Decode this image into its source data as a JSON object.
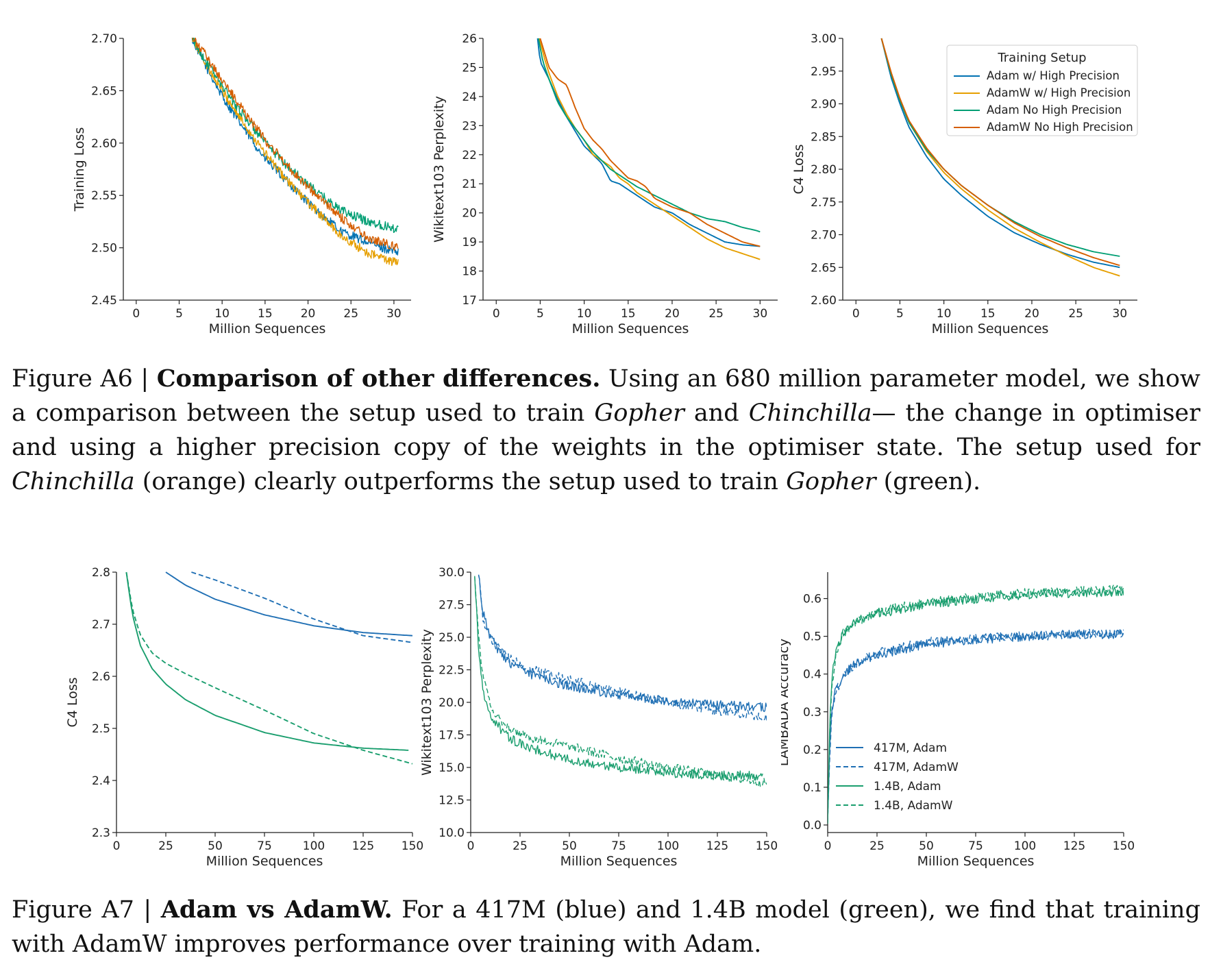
{
  "figureA6": {
    "label": "Figure A6 | ",
    "title": "Comparison of other differences.",
    "caption_parts": [
      " Using an 680 million parameter model, we show a comparison between the setup used to train ",
      "Gopher",
      " and ",
      "Chinchilla",
      "— the change in optimiser and using a higher precision copy of the weights in the optimiser state. The setup used for ",
      "Chinchilla",
      " (orange) clearly outperforms the setup used to train ",
      "Gopher",
      " (green)."
    ],
    "legend_title": "Training Setup"
  },
  "figureA7": {
    "label": "Figure A7 | ",
    "title": "Adam vs AdamW.",
    "caption": " For a 417M (blue) and 1.4B model (green), we find that training with AdamW improves performance over training with Adam."
  },
  "colors": {
    "blue": "#0072b2",
    "orange": "#e69f00",
    "green": "#009e73",
    "vermillion": "#d55e00",
    "adam417": "#1f6fb4",
    "adam14": "#1a9e6e"
  },
  "chart_data": [
    {
      "id": "a6-train",
      "type": "line",
      "title": "",
      "xlabel": "Million Sequences",
      "ylabel": "Training Loss",
      "xlim": [
        -1.5,
        32
      ],
      "ylim": [
        2.45,
        2.7
      ],
      "xticks": [
        0,
        5,
        10,
        15,
        20,
        25,
        30
      ],
      "yticks": [
        2.45,
        2.5,
        2.55,
        2.6,
        2.65,
        2.7
      ],
      "ytick_labels": [
        "2.45",
        "2.50",
        "2.55",
        "2.60",
        "2.65",
        "2.70"
      ],
      "noisy": true,
      "series": [
        {
          "name": "Adam w/ High Precision",
          "color": "#0072b2",
          "x": [
            6.5,
            8,
            10,
            12,
            15,
            18,
            21,
            24,
            27,
            30.5
          ],
          "y": [
            2.7,
            2.675,
            2.645,
            2.62,
            2.585,
            2.56,
            2.535,
            2.515,
            2.505,
            2.495
          ]
        },
        {
          "name": "AdamW w/ High Precision",
          "color": "#e69f00",
          "x": [
            6.5,
            8,
            10,
            12,
            15,
            18,
            21,
            24,
            27,
            30.5
          ],
          "y": [
            2.7,
            2.678,
            2.65,
            2.625,
            2.59,
            2.56,
            2.535,
            2.51,
            2.495,
            2.485
          ]
        },
        {
          "name": "Adam No High Precision",
          "color": "#009e73",
          "x": [
            6.5,
            8,
            10,
            12,
            15,
            18,
            21,
            24,
            27,
            30.5
          ],
          "y": [
            2.7,
            2.68,
            2.655,
            2.632,
            2.6,
            2.575,
            2.553,
            2.535,
            2.525,
            2.518
          ]
        },
        {
          "name": "AdamW No High Precision",
          "color": "#d55e00",
          "x": [
            6.5,
            8,
            10,
            12,
            15,
            18,
            21,
            24,
            27,
            30.5
          ],
          "y": [
            2.7,
            2.685,
            2.66,
            2.637,
            2.603,
            2.575,
            2.55,
            2.528,
            2.51,
            2.5
          ]
        }
      ]
    },
    {
      "id": "a6-wiki",
      "type": "line",
      "title": "",
      "xlabel": "Million Sequences",
      "ylabel": "Wikitext103 Perplexity",
      "xlim": [
        -1.5,
        32
      ],
      "ylim": [
        17,
        26
      ],
      "xticks": [
        0,
        5,
        10,
        15,
        20,
        25,
        30
      ],
      "yticks": [
        17,
        18,
        19,
        20,
        21,
        22,
        23,
        24,
        25,
        26
      ],
      "ytick_labels": [
        "17",
        "18",
        "19",
        "20",
        "21",
        "22",
        "23",
        "24",
        "25",
        "26"
      ],
      "series": [
        {
          "name": "Adam w/ High Precision",
          "color": "#0072b2",
          "x": [
            4.7,
            5,
            6,
            7,
            8,
            9,
            10,
            11,
            12,
            13,
            14,
            15,
            16,
            18,
            20,
            22,
            24,
            26,
            28,
            30
          ],
          "y": [
            26,
            25.2,
            24.6,
            23.9,
            23.3,
            22.8,
            22.3,
            22.0,
            21.7,
            21.1,
            21.0,
            20.8,
            20.6,
            20.2,
            20.0,
            19.6,
            19.3,
            19.0,
            18.9,
            18.85
          ]
        },
        {
          "name": "AdamW w/ High Precision",
          "color": "#e69f00",
          "x": [
            4.9,
            5.5,
            6,
            7,
            8,
            9,
            10,
            11,
            12,
            13,
            14,
            15,
            16,
            18,
            20,
            22,
            24,
            26,
            28,
            30
          ],
          "y": [
            26,
            25.3,
            24.8,
            24.0,
            23.4,
            22.9,
            22.5,
            22.0,
            21.8,
            21.6,
            21.2,
            21.0,
            20.7,
            20.3,
            19.9,
            19.5,
            19.1,
            18.8,
            18.6,
            18.4
          ]
        },
        {
          "name": "Adam No High Precision",
          "color": "#009e73",
          "x": [
            4.8,
            5.3,
            6,
            7,
            8,
            9,
            10,
            11,
            12,
            13,
            14,
            15,
            16,
            18,
            20,
            22,
            24,
            26,
            28,
            29.5,
            30
          ],
          "y": [
            26,
            25.2,
            24.6,
            23.8,
            23.3,
            22.9,
            22.5,
            22.1,
            21.8,
            21.5,
            21.3,
            21.1,
            20.9,
            20.6,
            20.3,
            20.0,
            19.8,
            19.7,
            19.5,
            19.4,
            19.35
          ]
        },
        {
          "name": "AdamW No High Precision",
          "color": "#d55e00",
          "x": [
            5,
            5.5,
            6,
            7,
            8,
            9,
            10,
            11,
            12,
            13,
            14,
            15,
            16,
            17,
            18,
            20,
            22,
            24,
            26,
            28,
            30
          ],
          "y": [
            26,
            25.5,
            25.0,
            24.6,
            24.4,
            23.6,
            22.9,
            22.5,
            22.2,
            21.8,
            21.5,
            21.2,
            21.1,
            20.9,
            20.5,
            20.2,
            20.0,
            19.6,
            19.3,
            19.0,
            18.85
          ]
        }
      ]
    },
    {
      "id": "a6-c4",
      "type": "line",
      "title": "",
      "xlabel": "Million Sequences",
      "ylabel": "C4 Loss",
      "xlim": [
        -1.5,
        32
      ],
      "ylim": [
        2.6,
        3.0
      ],
      "xticks": [
        0,
        5,
        10,
        15,
        20,
        25,
        30
      ],
      "yticks": [
        2.6,
        2.65,
        2.7,
        2.75,
        2.8,
        2.85,
        2.9,
        2.95,
        3.0
      ],
      "ytick_labels": [
        "2.60",
        "2.65",
        "2.70",
        "2.75",
        "2.80",
        "2.85",
        "2.90",
        "2.95",
        "3.00"
      ],
      "legend": "top-right",
      "series": [
        {
          "name": "Adam w/ High Precision",
          "color": "#0072b2",
          "x": [
            2.9,
            4,
            5,
            6,
            8,
            10,
            12,
            15,
            18,
            21,
            24,
            27,
            30
          ],
          "y": [
            3.0,
            2.94,
            2.9,
            2.865,
            2.82,
            2.785,
            2.76,
            2.728,
            2.703,
            2.685,
            2.67,
            2.658,
            2.65
          ]
        },
        {
          "name": "AdamW w/ High Precision",
          "color": "#e69f00",
          "x": [
            2.9,
            4,
            5,
            6,
            8,
            10,
            12,
            15,
            18,
            21,
            24,
            27,
            30
          ],
          "y": [
            3.0,
            2.945,
            2.905,
            2.872,
            2.828,
            2.795,
            2.77,
            2.738,
            2.71,
            2.688,
            2.668,
            2.65,
            2.637
          ]
        },
        {
          "name": "Adam No High Precision",
          "color": "#009e73",
          "x": [
            2.9,
            4,
            5,
            6,
            8,
            10,
            12,
            15,
            18,
            21,
            24,
            27,
            30
          ],
          "y": [
            3.0,
            2.945,
            2.905,
            2.872,
            2.83,
            2.8,
            2.775,
            2.745,
            2.72,
            2.7,
            2.685,
            2.674,
            2.667
          ]
        },
        {
          "name": "AdamW No High Precision",
          "color": "#d55e00",
          "x": [
            2.9,
            4,
            5,
            6,
            8,
            10,
            12,
            15,
            18,
            21,
            24,
            27,
            30
          ],
          "y": [
            3.0,
            2.948,
            2.908,
            2.875,
            2.833,
            2.8,
            2.775,
            2.745,
            2.718,
            2.697,
            2.68,
            2.665,
            2.653
          ]
        }
      ]
    },
    {
      "id": "a7-c4",
      "type": "line",
      "title": "",
      "xlabel": "Million Sequences",
      "ylabel": "C4 Loss",
      "xlim": [
        0,
        150
      ],
      "ylim": [
        2.3,
        2.8
      ],
      "xticks": [
        0,
        25,
        50,
        75,
        100,
        125,
        150
      ],
      "yticks": [
        2.3,
        2.4,
        2.5,
        2.6,
        2.7,
        2.8
      ],
      "ytick_labels": [
        "2.3",
        "2.4",
        "2.5",
        "2.6",
        "2.7",
        "2.8"
      ],
      "series": [
        {
          "name": "417M, Adam",
          "color": "#1f6fb4",
          "dash": false,
          "x": [
            25,
            35,
            50,
            75,
            100,
            125,
            150
          ],
          "y": [
            2.8,
            2.775,
            2.748,
            2.718,
            2.697,
            2.684,
            2.678
          ]
        },
        {
          "name": "417M, AdamW",
          "color": "#1f6fb4",
          "dash": true,
          "x": [
            38,
            50,
            75,
            100,
            125,
            150
          ],
          "y": [
            2.8,
            2.785,
            2.75,
            2.71,
            2.678,
            2.665
          ]
        },
        {
          "name": "1.4B, Adam",
          "color": "#1a9e6e",
          "dash": false,
          "x": [
            5,
            8,
            12,
            18,
            25,
            35,
            50,
            75,
            100,
            125,
            148
          ],
          "y": [
            2.8,
            2.72,
            2.66,
            2.615,
            2.585,
            2.555,
            2.525,
            2.492,
            2.472,
            2.462,
            2.458
          ]
        },
        {
          "name": "1.4B, AdamW",
          "color": "#1a9e6e",
          "dash": true,
          "x": [
            5,
            8,
            12,
            18,
            25,
            35,
            50,
            75,
            100,
            125,
            150
          ],
          "y": [
            2.8,
            2.73,
            2.68,
            2.645,
            2.625,
            2.605,
            2.578,
            2.535,
            2.49,
            2.458,
            2.432
          ]
        }
      ]
    },
    {
      "id": "a7-wiki",
      "type": "line",
      "title": "",
      "xlabel": "Million Sequences",
      "ylabel": "Wikitext103 Perplexity",
      "xlim": [
        0,
        150
      ],
      "ylim": [
        10.0,
        30.0
      ],
      "xticks": [
        0,
        25,
        50,
        75,
        100,
        125,
        150
      ],
      "yticks": [
        10.0,
        12.5,
        15.0,
        17.5,
        20.0,
        22.5,
        25.0,
        27.5,
        30.0
      ],
      "ytick_labels": [
        "10.0",
        "12.5",
        "15.0",
        "17.5",
        "20.0",
        "22.5",
        "25.0",
        "27.5",
        "30.0"
      ],
      "noisy": true,
      "series": [
        {
          "name": "417M, Adam",
          "color": "#1f6fb4",
          "dash": false,
          "x": [
            4,
            6,
            10,
            15,
            20,
            30,
            50,
            75,
            100,
            125,
            150
          ],
          "y": [
            30,
            27,
            25,
            23.8,
            23.0,
            22.2,
            21.2,
            20.6,
            20.1,
            19.8,
            19.6
          ]
        },
        {
          "name": "417M, AdamW",
          "color": "#1f6fb4",
          "dash": true,
          "x": [
            4,
            6,
            10,
            15,
            20,
            30,
            50,
            75,
            100,
            125,
            150
          ],
          "y": [
            30,
            26.5,
            25.0,
            24.0,
            23.3,
            22.6,
            21.7,
            20.8,
            20.0,
            19.4,
            18.9
          ]
        },
        {
          "name": "1.4B, Adam",
          "color": "#1a9e6e",
          "dash": false,
          "x": [
            2,
            4,
            6,
            10,
            15,
            20,
            30,
            50,
            75,
            100,
            125,
            148
          ],
          "y": [
            30,
            24,
            21,
            19,
            18.0,
            17.2,
            16.5,
            15.6,
            15.0,
            14.6,
            14.4,
            14.35
          ]
        },
        {
          "name": "1.4B, AdamW",
          "color": "#1a9e6e",
          "dash": true,
          "x": [
            2,
            4,
            6,
            10,
            15,
            20,
            30,
            50,
            75,
            100,
            125,
            150
          ],
          "y": [
            30,
            25,
            22,
            19.8,
            18.6,
            17.9,
            17.3,
            16.6,
            15.7,
            15.0,
            14.4,
            13.8
          ]
        }
      ]
    },
    {
      "id": "a7-lambada",
      "type": "line",
      "title": "",
      "xlabel": "Million Sequences",
      "ylabel": "LAMBADA Accuracy",
      "xlim": [
        0,
        150
      ],
      "ylim": [
        -0.02,
        0.67
      ],
      "xticks": [
        0,
        25,
        50,
        75,
        100,
        125,
        150
      ],
      "yticks": [
        0.0,
        0.1,
        0.2,
        0.3,
        0.4,
        0.5,
        0.6
      ],
      "ytick_labels": [
        "0.0",
        "0.1",
        "0.2",
        "0.3",
        "0.4",
        "0.5",
        "0.6"
      ],
      "noisy": true,
      "legend": "lower-left",
      "series": [
        {
          "name": "417M, Adam",
          "color": "#1f6fb4",
          "dash": false,
          "x": [
            0,
            1,
            2,
            4,
            8,
            15,
            25,
            50,
            75,
            100,
            125,
            150
          ],
          "y": [
            0.0,
            0.2,
            0.3,
            0.36,
            0.4,
            0.43,
            0.45,
            0.48,
            0.49,
            0.5,
            0.505,
            0.505
          ]
        },
        {
          "name": "417M, AdamW",
          "color": "#1f6fb4",
          "dash": true,
          "x": [
            0,
            1,
            2,
            4,
            8,
            15,
            25,
            50,
            75,
            100,
            125,
            150
          ],
          "y": [
            0.0,
            0.18,
            0.28,
            0.35,
            0.4,
            0.43,
            0.455,
            0.485,
            0.495,
            0.5,
            0.505,
            0.51
          ]
        },
        {
          "name": "1.4B, Adam",
          "color": "#1a9e6e",
          "dash": false,
          "x": [
            0,
            1,
            2,
            4,
            8,
            15,
            25,
            50,
            75,
            100,
            125,
            150
          ],
          "y": [
            0.0,
            0.25,
            0.38,
            0.46,
            0.51,
            0.54,
            0.56,
            0.585,
            0.6,
            0.61,
            0.615,
            0.618
          ]
        },
        {
          "name": "1.4B, AdamW",
          "color": "#1a9e6e",
          "dash": true,
          "x": [
            0,
            1,
            2,
            4,
            8,
            15,
            25,
            50,
            75,
            100,
            125,
            150
          ],
          "y": [
            0.0,
            0.23,
            0.36,
            0.45,
            0.51,
            0.54,
            0.565,
            0.59,
            0.605,
            0.615,
            0.62,
            0.625
          ]
        }
      ]
    }
  ]
}
